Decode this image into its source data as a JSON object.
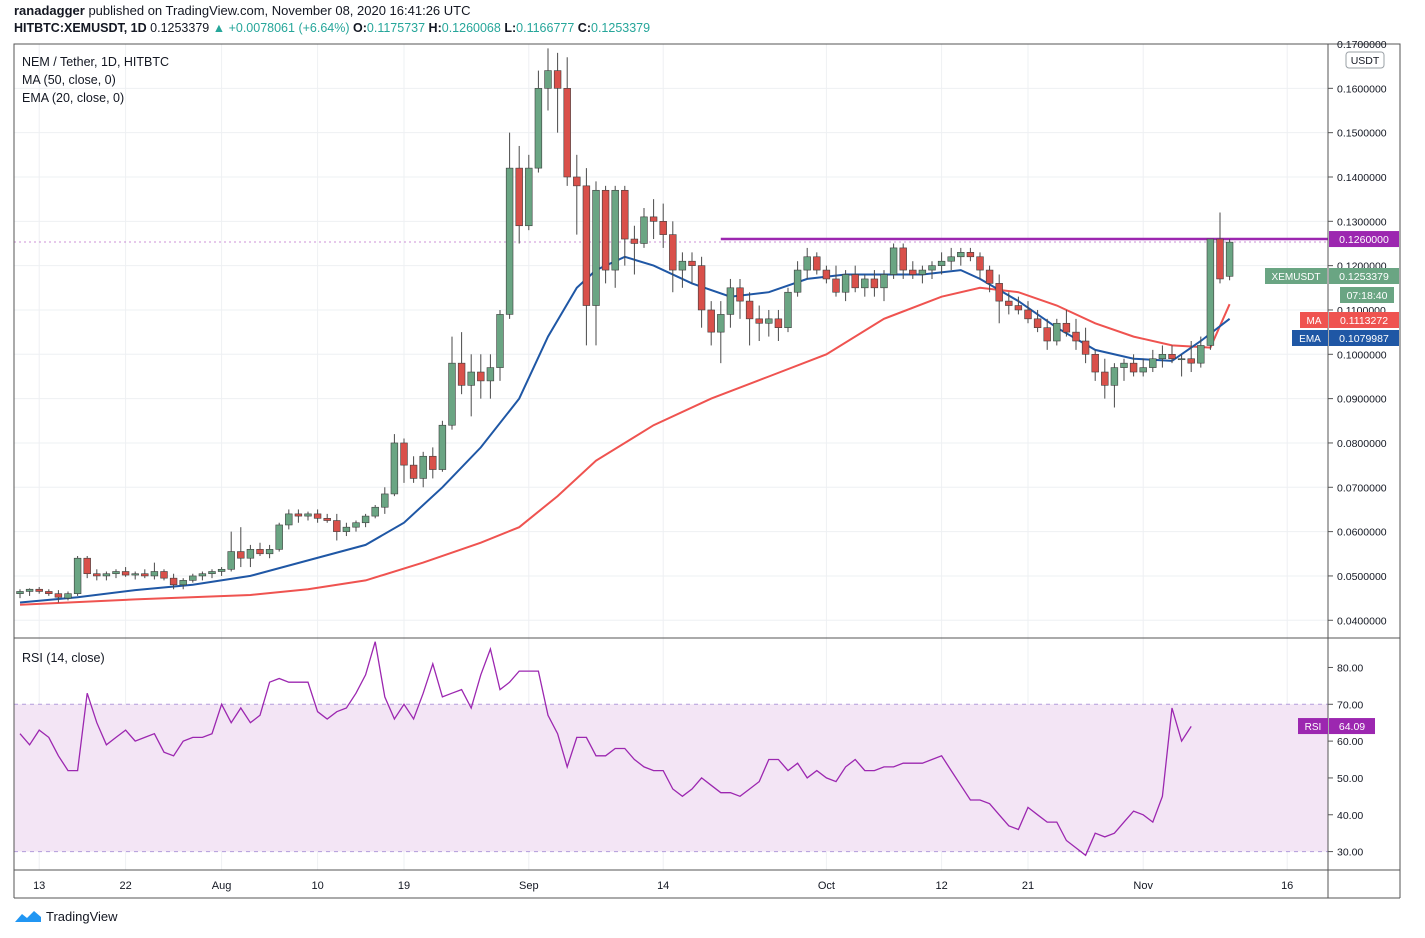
{
  "header": {
    "author": "ranadagger",
    "published": "published on TradingView.com, November 08, 2020 16:41:26 UTC",
    "symbol": "HITBTC:XEMUSDT, 1D",
    "last": "0.1253379",
    "change": "+0.0078061 (+6.64%)",
    "o_label": "O:",
    "o_val": "0.1175737",
    "h_label": "H:",
    "h_val": "0.1260068",
    "l_label": "L:",
    "l_val": "0.1166777",
    "c_label": "C:",
    "c_val": "0.1253379"
  },
  "legend": {
    "title": "NEM / Tether, 1D, HITBTC",
    "ma": "MA (50, close, 0)",
    "ema": "EMA (20, close, 0)",
    "rsi": "RSI (14, close)"
  },
  "axis": {
    "currency": "USDT"
  },
  "badges": {
    "resistance": "0.1260000",
    "symbol_name": "XEMUSDT",
    "symbol_price": "0.1253379",
    "countdown": "07:18:40",
    "ma_name": "MA",
    "ma_val": "0.1113272",
    "ema_name": "EMA",
    "ema_val": "0.1079987",
    "rsi_name": "RSI",
    "rsi_val": "64.09"
  },
  "colors": {
    "up": "#6aa583",
    "down": "#d9504a",
    "ma": "#ef5350",
    "ema": "#1f57a5",
    "resistance": "#9c27b0",
    "rsi": "#9c27b0",
    "rsi_band": "#f3e5f5"
  },
  "footer": {
    "brand": "TradingView",
    "logo_icon": "tradingview-logo-icon"
  },
  "chart_data": [
    {
      "type": "candlestick",
      "title": "NEM / Tether, 1D, HITBTC",
      "ylim": [
        0.036,
        0.17
      ],
      "y_ticks": [
        "0.1700000",
        "0.1600000",
        "0.1500000",
        "0.1400000",
        "0.1300000",
        "0.1200000",
        "0.1100000",
        "0.1000000",
        "0.0900000",
        "0.0800000",
        "0.0700000",
        "0.0600000",
        "0.0500000",
        "0.0400000"
      ],
      "x_ticks": [
        "13",
        "22",
        "Aug",
        "10",
        "19",
        "Sep",
        "14",
        "Oct",
        "12",
        "21",
        "Nov",
        "16"
      ],
      "resistance": 0.126,
      "candles": [
        [
          0.046,
          0.047,
          0.045,
          0.0465
        ],
        [
          0.0465,
          0.0472,
          0.0455,
          0.047
        ],
        [
          0.047,
          0.0475,
          0.046,
          0.0465
        ],
        [
          0.0465,
          0.047,
          0.0455,
          0.046
        ],
        [
          0.046,
          0.0468,
          0.044,
          0.0452
        ],
        [
          0.045,
          0.0465,
          0.0445,
          0.046
        ],
        [
          0.046,
          0.0545,
          0.0455,
          0.054
        ],
        [
          0.054,
          0.0545,
          0.0495,
          0.0505
        ],
        [
          0.0505,
          0.0515,
          0.049,
          0.05
        ],
        [
          0.05,
          0.051,
          0.049,
          0.0505
        ],
        [
          0.0505,
          0.0515,
          0.0495,
          0.051
        ],
        [
          0.051,
          0.052,
          0.0498,
          0.0502
        ],
        [
          0.0502,
          0.051,
          0.0492,
          0.0505
        ],
        [
          0.0505,
          0.0515,
          0.0495,
          0.05
        ],
        [
          0.05,
          0.053,
          0.0492,
          0.051
        ],
        [
          0.051,
          0.0515,
          0.049,
          0.0495
        ],
        [
          0.0495,
          0.0505,
          0.047,
          0.048
        ],
        [
          0.048,
          0.0495,
          0.047,
          0.049
        ],
        [
          0.049,
          0.0505,
          0.0485,
          0.05
        ],
        [
          0.05,
          0.051,
          0.049,
          0.0505
        ],
        [
          0.0505,
          0.0515,
          0.0495,
          0.051
        ],
        [
          0.051,
          0.052,
          0.05,
          0.0515
        ],
        [
          0.0515,
          0.06,
          0.051,
          0.0555
        ],
        [
          0.0555,
          0.061,
          0.052,
          0.054
        ],
        [
          0.054,
          0.057,
          0.052,
          0.056
        ],
        [
          0.056,
          0.0575,
          0.0545,
          0.055
        ],
        [
          0.055,
          0.057,
          0.054,
          0.056
        ],
        [
          0.056,
          0.062,
          0.0555,
          0.0615
        ],
        [
          0.0615,
          0.065,
          0.0605,
          0.064
        ],
        [
          0.064,
          0.065,
          0.062,
          0.0635
        ],
        [
          0.0635,
          0.0645,
          0.0625,
          0.064
        ],
        [
          0.064,
          0.065,
          0.062,
          0.063
        ],
        [
          0.063,
          0.064,
          0.062,
          0.0625
        ],
        [
          0.0625,
          0.064,
          0.058,
          0.06
        ],
        [
          0.06,
          0.062,
          0.059,
          0.061
        ],
        [
          0.061,
          0.0625,
          0.06,
          0.062
        ],
        [
          0.062,
          0.064,
          0.061,
          0.0635
        ],
        [
          0.0635,
          0.066,
          0.063,
          0.0655
        ],
        [
          0.0655,
          0.07,
          0.064,
          0.0685
        ],
        [
          0.0685,
          0.082,
          0.068,
          0.08
        ],
        [
          0.08,
          0.081,
          0.071,
          0.075
        ],
        [
          0.075,
          0.077,
          0.071,
          0.072
        ],
        [
          0.072,
          0.078,
          0.07,
          0.077
        ],
        [
          0.077,
          0.079,
          0.072,
          0.074
        ],
        [
          0.074,
          0.085,
          0.0735,
          0.084
        ],
        [
          0.084,
          0.104,
          0.083,
          0.098
        ],
        [
          0.098,
          0.105,
          0.091,
          0.093
        ],
        [
          0.093,
          0.1,
          0.086,
          0.096
        ],
        [
          0.096,
          0.1,
          0.09,
          0.094
        ],
        [
          0.094,
          0.1,
          0.09,
          0.097
        ],
        [
          0.097,
          0.11,
          0.094,
          0.109
        ],
        [
          0.109,
          0.15,
          0.108,
          0.142
        ],
        [
          0.142,
          0.147,
          0.125,
          0.129
        ],
        [
          0.129,
          0.145,
          0.128,
          0.142
        ],
        [
          0.142,
          0.164,
          0.141,
          0.16
        ],
        [
          0.16,
          0.169,
          0.155,
          0.164
        ],
        [
          0.164,
          0.168,
          0.15,
          0.16
        ],
        [
          0.16,
          0.167,
          0.138,
          0.14
        ],
        [
          0.14,
          0.145,
          0.127,
          0.138
        ],
        [
          0.138,
          0.142,
          0.102,
          0.111
        ],
        [
          0.111,
          0.139,
          0.102,
          0.137
        ],
        [
          0.137,
          0.138,
          0.116,
          0.119
        ],
        [
          0.119,
          0.138,
          0.115,
          0.137
        ],
        [
          0.137,
          0.138,
          0.12,
          0.126
        ],
        [
          0.126,
          0.129,
          0.118,
          0.125
        ],
        [
          0.125,
          0.133,
          0.124,
          0.131
        ],
        [
          0.131,
          0.135,
          0.126,
          0.13
        ],
        [
          0.13,
          0.134,
          0.124,
          0.127
        ],
        [
          0.127,
          0.13,
          0.114,
          0.119
        ],
        [
          0.119,
          0.123,
          0.115,
          0.121
        ],
        [
          0.121,
          0.123,
          0.116,
          0.12
        ],
        [
          0.12,
          0.122,
          0.106,
          0.11
        ],
        [
          0.11,
          0.112,
          0.102,
          0.105
        ],
        [
          0.105,
          0.112,
          0.098,
          0.109
        ],
        [
          0.109,
          0.117,
          0.106,
          0.115
        ],
        [
          0.115,
          0.117,
          0.108,
          0.112
        ],
        [
          0.112,
          0.114,
          0.102,
          0.108
        ],
        [
          0.108,
          0.111,
          0.103,
          0.107
        ],
        [
          0.107,
          0.11,
          0.104,
          0.108
        ],
        [
          0.108,
          0.11,
          0.103,
          0.106
        ],
        [
          0.106,
          0.115,
          0.105,
          0.114
        ],
        [
          0.114,
          0.121,
          0.113,
          0.119
        ],
        [
          0.119,
          0.124,
          0.117,
          0.122
        ],
        [
          0.122,
          0.123,
          0.118,
          0.119
        ],
        [
          0.119,
          0.12,
          0.116,
          0.117
        ],
        [
          0.117,
          0.12,
          0.113,
          0.114
        ],
        [
          0.114,
          0.119,
          0.112,
          0.118
        ],
        [
          0.118,
          0.12,
          0.114,
          0.115
        ],
        [
          0.115,
          0.118,
          0.113,
          0.117
        ],
        [
          0.117,
          0.119,
          0.113,
          0.115
        ],
        [
          0.115,
          0.119,
          0.112,
          0.118
        ],
        [
          0.118,
          0.125,
          0.117,
          0.124
        ],
        [
          0.124,
          0.125,
          0.117,
          0.119
        ],
        [
          0.119,
          0.121,
          0.117,
          0.118
        ],
        [
          0.118,
          0.12,
          0.116,
          0.119
        ],
        [
          0.119,
          0.121,
          0.117,
          0.12
        ],
        [
          0.12,
          0.123,
          0.118,
          0.121
        ],
        [
          0.121,
          0.124,
          0.119,
          0.122
        ],
        [
          0.122,
          0.124,
          0.12,
          0.123
        ],
        [
          0.123,
          0.124,
          0.121,
          0.122
        ],
        [
          0.122,
          0.123,
          0.117,
          0.119
        ],
        [
          0.119,
          0.12,
          0.114,
          0.116
        ],
        [
          0.116,
          0.118,
          0.107,
          0.112
        ],
        [
          0.112,
          0.114,
          0.109,
          0.111
        ],
        [
          0.111,
          0.113,
          0.109,
          0.11
        ],
        [
          0.11,
          0.112,
          0.107,
          0.108
        ],
        [
          0.108,
          0.11,
          0.105,
          0.106
        ],
        [
          0.106,
          0.108,
          0.101,
          0.103
        ],
        [
          0.103,
          0.108,
          0.102,
          0.107
        ],
        [
          0.107,
          0.11,
          0.104,
          0.105
        ],
        [
          0.105,
          0.108,
          0.101,
          0.103
        ],
        [
          0.103,
          0.106,
          0.098,
          0.1
        ],
        [
          0.1,
          0.101,
          0.094,
          0.096
        ],
        [
          0.096,
          0.099,
          0.09,
          0.093
        ],
        [
          0.093,
          0.098,
          0.088,
          0.097
        ],
        [
          0.097,
          0.099,
          0.094,
          0.098
        ],
        [
          0.098,
          0.1,
          0.095,
          0.096
        ],
        [
          0.096,
          0.099,
          0.095,
          0.097
        ],
        [
          0.097,
          0.101,
          0.096,
          0.099
        ],
        [
          0.099,
          0.102,
          0.097,
          0.1
        ],
        [
          0.1,
          0.102,
          0.098,
          0.099
        ],
        [
          0.099,
          0.1,
          0.095,
          0.099
        ],
        [
          0.099,
          0.103,
          0.096,
          0.098
        ],
        [
          0.098,
          0.104,
          0.097,
          0.102
        ],
        [
          0.102,
          0.126,
          0.101,
          0.126
        ],
        [
          0.126,
          0.132,
          0.116,
          0.117
        ],
        [
          0.1176,
          0.126,
          0.1167,
          0.1253
        ]
      ],
      "ma50": [
        [
          0,
          0.0435
        ],
        [
          12,
          0.0447
        ],
        [
          24,
          0.0457
        ],
        [
          30,
          0.047
        ],
        [
          36,
          0.049
        ],
        [
          42,
          0.053
        ],
        [
          48,
          0.0575
        ],
        [
          52,
          0.061
        ],
        [
          56,
          0.068
        ],
        [
          60,
          0.076
        ],
        [
          66,
          0.084
        ],
        [
          72,
          0.09
        ],
        [
          78,
          0.095
        ],
        [
          84,
          0.1
        ],
        [
          90,
          0.108
        ],
        [
          96,
          0.113
        ],
        [
          100,
          0.115
        ],
        [
          104,
          0.114
        ],
        [
          108,
          0.111
        ],
        [
          112,
          0.107
        ],
        [
          116,
          0.104
        ],
        [
          120,
          0.102
        ],
        [
          124,
          0.1015
        ],
        [
          126,
          0.1113
        ]
      ],
      "ema20": [
        [
          0,
          0.044
        ],
        [
          6,
          0.0452
        ],
        [
          12,
          0.0468
        ],
        [
          18,
          0.048
        ],
        [
          24,
          0.05
        ],
        [
          30,
          0.0535
        ],
        [
          36,
          0.057
        ],
        [
          40,
          0.062
        ],
        [
          44,
          0.07
        ],
        [
          48,
          0.079
        ],
        [
          52,
          0.09
        ],
        [
          55,
          0.104
        ],
        [
          58,
          0.115
        ],
        [
          60,
          0.119
        ],
        [
          63,
          0.122
        ],
        [
          66,
          0.12
        ],
        [
          70,
          0.116
        ],
        [
          74,
          0.113
        ],
        [
          78,
          0.114
        ],
        [
          82,
          0.117
        ],
        [
          86,
          0.118
        ],
        [
          90,
          0.118
        ],
        [
          94,
          0.118
        ],
        [
          98,
          0.119
        ],
        [
          100,
          0.117
        ],
        [
          104,
          0.112
        ],
        [
          108,
          0.106
        ],
        [
          112,
          0.101
        ],
        [
          116,
          0.099
        ],
        [
          120,
          0.0985
        ],
        [
          123,
          0.103
        ],
        [
          126,
          0.108
        ]
      ]
    },
    {
      "type": "line",
      "title": "RSI (14, close)",
      "ylim": [
        25,
        88
      ],
      "y_ticks": [
        "80.00",
        "70.00",
        "60.00",
        "50.00",
        "40.00",
        "30.00"
      ],
      "band": [
        30,
        70
      ],
      "values": [
        62,
        59,
        63,
        61,
        56,
        52,
        52,
        73,
        65,
        59,
        61,
        63,
        60,
        61,
        62,
        57,
        56,
        60,
        61,
        61,
        62,
        70,
        65,
        69,
        65,
        67,
        76,
        77,
        76,
        76,
        76,
        68,
        66,
        68,
        69,
        73,
        78,
        87,
        72,
        66,
        70,
        66,
        73,
        81,
        72,
        73,
        74,
        69,
        78,
        85,
        74,
        76,
        79,
        79,
        79,
        67,
        62,
        53,
        61,
        61,
        56,
        56,
        58,
        58,
        55,
        53,
        52,
        52,
        47,
        45,
        47,
        50,
        48,
        46,
        46,
        45,
        47,
        49,
        55,
        55,
        52,
        54,
        50,
        52,
        50,
        49,
        53,
        55,
        52,
        52,
        53,
        53,
        54,
        54,
        54,
        55,
        56,
        52,
        48,
        44,
        44,
        43,
        40,
        37,
        36,
        42,
        40,
        38,
        38,
        33,
        31,
        29,
        35,
        34,
        35,
        38,
        41,
        40,
        38,
        45,
        69,
        60,
        64
      ]
    }
  ]
}
